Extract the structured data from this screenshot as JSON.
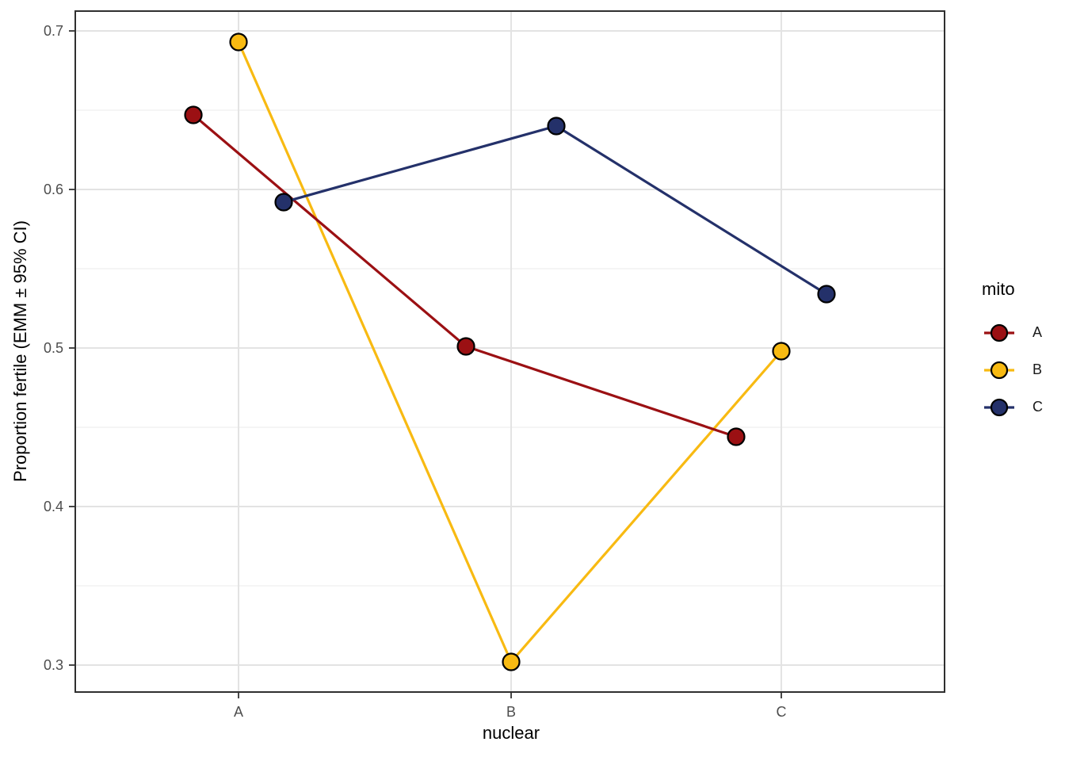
{
  "chart_data": {
    "type": "line",
    "title": "",
    "xlabel": "nuclear",
    "ylabel": "Proportion fertile (EMM ± 95% CI)",
    "categories": [
      "A",
      "B",
      "C"
    ],
    "series": [
      {
        "name": "A",
        "color": "#9B1013",
        "values": [
          0.647,
          0.501,
          0.444
        ]
      },
      {
        "name": "B",
        "color": "#F8BA12",
        "values": [
          0.693,
          0.302,
          0.498
        ]
      },
      {
        "name": "C",
        "color": "#24316A",
        "values": [
          0.592,
          0.64,
          0.534
        ]
      }
    ],
    "ylim": [
      0.283,
      0.7125
    ],
    "yticks": [
      0.3,
      0.4,
      0.5,
      0.6,
      0.7
    ],
    "ytick_labels": [
      "0.3",
      "0.4",
      "0.5",
      "0.6",
      "0.7"
    ],
    "yminor": [
      0.35,
      0.45,
      0.55,
      0.65
    ],
    "grid": true,
    "legend_title": "mito",
    "legend_position": "right",
    "point_outline": "#000000",
    "panel_background": "#FFFFFF",
    "panel_border_color": "#2F2F2F",
    "grid_major_color": "#E3E3E3",
    "grid_minor_color": "#EFEFEF",
    "tick_color": "#333333",
    "tick_label_color": "#4D4D4D"
  }
}
